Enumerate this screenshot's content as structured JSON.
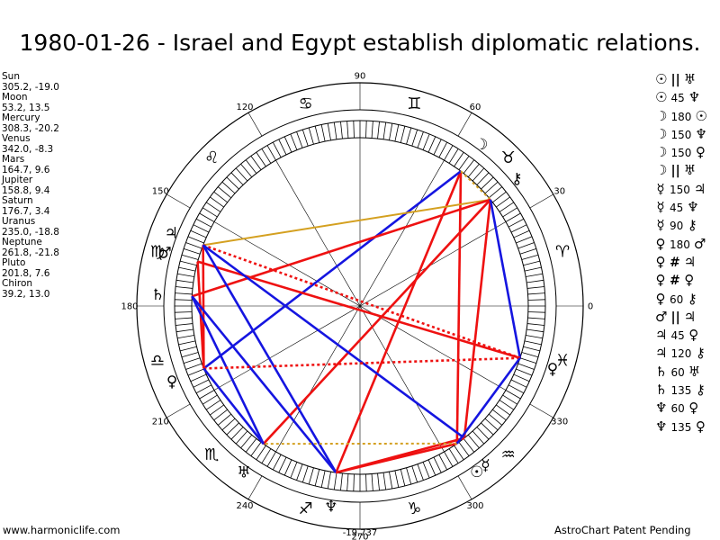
{
  "title": "1980-01-26 - Israel and Egypt establish diplomatic relations.",
  "planets": [
    {
      "name": "Sun",
      "coords": "305.2, -19.0",
      "glyph": "☉",
      "icon": "sun-icon",
      "lon": 305.2
    },
    {
      "name": "Moon",
      "coords": "53.2, 13.5",
      "glyph": "☽",
      "icon": "moon-icon",
      "lon": 53.2
    },
    {
      "name": "Mercury",
      "coords": "308.3, -20.2",
      "glyph": "☿",
      "icon": "mercury-icon",
      "lon": 308.3
    },
    {
      "name": "Venus",
      "coords": "342.0, -8.3",
      "glyph": "♀",
      "icon": "venus-icon",
      "lon": 342.0
    },
    {
      "name": "Mars",
      "coords": "164.7, 9.6",
      "glyph": "♂",
      "icon": "mars-icon",
      "lon": 164.7
    },
    {
      "name": "Jupiter",
      "coords": "158.8, 9.4",
      "glyph": "♃",
      "icon": "jupiter-icon",
      "lon": 158.8
    },
    {
      "name": "Saturn",
      "coords": "176.7, 3.4",
      "glyph": "♄",
      "icon": "saturn-icon",
      "lon": 176.7
    },
    {
      "name": "Uranus",
      "coords": "235.0, -18.8",
      "glyph": "♅",
      "icon": "uranus-icon",
      "lon": 235.0
    },
    {
      "name": "Neptune",
      "coords": "261.8, -21.8",
      "glyph": "♆",
      "icon": "neptune-icon",
      "lon": 261.8
    },
    {
      "name": "Pluto",
      "coords": "201.8, 7.6",
      "glyph": "♀",
      "icon": "pluto-icon",
      "lon": 201.8
    },
    {
      "name": "Chiron",
      "coords": "39.2, 13.0",
      "glyph": "⚷",
      "icon": "chiron-icon",
      "lon": 39.2
    }
  ],
  "aspects": [
    {
      "p1": "☉",
      "sym": "||",
      "p2": "♅"
    },
    {
      "p1": "☉",
      "sym": "45",
      "p2": "♆"
    },
    {
      "p1": "☽",
      "sym": "180",
      "p2": "☉"
    },
    {
      "p1": "☽",
      "sym": "150",
      "p2": "♆"
    },
    {
      "p1": "☽",
      "sym": "150",
      "p2": "♀"
    },
    {
      "p1": "☽",
      "sym": "||",
      "p2": "♅"
    },
    {
      "p1": "☿",
      "sym": "150",
      "p2": "♃"
    },
    {
      "p1": "☿",
      "sym": "45",
      "p2": "♆"
    },
    {
      "p1": "☿",
      "sym": "90",
      "p2": "⚷"
    },
    {
      "p1": "♀",
      "sym": "180",
      "p2": "♂"
    },
    {
      "p1": "♀",
      "sym": "#",
      "p2": "♃"
    },
    {
      "p1": "♀",
      "sym": "#",
      "p2": "♀"
    },
    {
      "p1": "♀",
      "sym": "60",
      "p2": "⚷"
    },
    {
      "p1": "♂",
      "sym": "||",
      "p2": "♃"
    },
    {
      "p1": "♃",
      "sym": "45",
      "p2": "♀"
    },
    {
      "p1": "♃",
      "sym": "120",
      "p2": "⚷"
    },
    {
      "p1": "♄",
      "sym": "60",
      "p2": "♅"
    },
    {
      "p1": "♄",
      "sym": "135",
      "p2": "⚷"
    },
    {
      "p1": "♆",
      "sym": "60",
      "p2": "♀"
    },
    {
      "p1": "♆",
      "sym": "135",
      "p2": "♀"
    }
  ],
  "degree_labels": [
    "0",
    "30",
    "60",
    "90",
    "120",
    "150",
    "180",
    "210",
    "240",
    "270",
    "300",
    "330"
  ],
  "zodiac": [
    {
      "glyph": "♈",
      "icon": "aries-icon"
    },
    {
      "glyph": "♉",
      "icon": "taurus-icon"
    },
    {
      "glyph": "♊",
      "icon": "gemini-icon"
    },
    {
      "glyph": "♋",
      "icon": "cancer-icon"
    },
    {
      "glyph": "♌",
      "icon": "leo-icon"
    },
    {
      "glyph": "♍",
      "icon": "virgo-icon"
    },
    {
      "glyph": "♎",
      "icon": "libra-icon"
    },
    {
      "glyph": "♏",
      "icon": "scorpio-icon"
    },
    {
      "glyph": "♐",
      "icon": "sagittarius-icon"
    },
    {
      "glyph": "♑",
      "icon": "capricorn-icon"
    },
    {
      "glyph": "♒",
      "icon": "aquarius-icon"
    },
    {
      "glyph": "♓",
      "icon": "pisces-icon"
    }
  ],
  "bottom_value": "-19,737",
  "lines": [
    {
      "a": "Moon",
      "b": "Sun",
      "color": "red",
      "style": "solid"
    },
    {
      "a": "Moon",
      "b": "Neptune",
      "color": "red",
      "style": "solid"
    },
    {
      "a": "Moon",
      "b": "Pluto",
      "color": "blue",
      "style": "solid"
    },
    {
      "a": "Moon",
      "b": "Chiron",
      "color": "gold",
      "style": "dotted"
    },
    {
      "a": "Chiron",
      "b": "Jupiter",
      "color": "gold",
      "style": "solid"
    },
    {
      "a": "Chiron",
      "b": "Saturn",
      "color": "red",
      "style": "solid"
    },
    {
      "a": "Chiron",
      "b": "Uranus",
      "color": "red",
      "style": "solid"
    },
    {
      "a": "Chiron",
      "b": "Mercury",
      "color": "red",
      "style": "solid"
    },
    {
      "a": "Chiron",
      "b": "Venus",
      "color": "blue",
      "style": "solid"
    },
    {
      "a": "Mars",
      "b": "Venus",
      "color": "red",
      "style": "solid"
    },
    {
      "a": "Jupiter",
      "b": "Venus",
      "color": "red",
      "style": "dotted"
    },
    {
      "a": "Jupiter",
      "b": "Pluto",
      "color": "red",
      "style": "solid"
    },
    {
      "a": "Jupiter",
      "b": "Mercury",
      "color": "blue",
      "style": "solid"
    },
    {
      "a": "Jupiter",
      "b": "Neptune",
      "color": "blue",
      "style": "solid"
    },
    {
      "a": "Mars",
      "b": "Pluto",
      "color": "red",
      "style": "solid"
    },
    {
      "a": "Saturn",
      "b": "Uranus",
      "color": "blue",
      "style": "solid"
    },
    {
      "a": "Saturn",
      "b": "Neptune",
      "color": "blue",
      "style": "solid"
    },
    {
      "a": "Pluto",
      "b": "Venus",
      "color": "red",
      "style": "dotted"
    },
    {
      "a": "Pluto",
      "b": "Uranus",
      "color": "blue",
      "style": "solid"
    },
    {
      "a": "Sun",
      "b": "Neptune",
      "color": "red",
      "style": "solid"
    },
    {
      "a": "Mercury",
      "b": "Neptune",
      "color": "red",
      "style": "solid"
    },
    {
      "a": "Sun",
      "b": "Uranus",
      "color": "gold",
      "style": "dotted"
    },
    {
      "a": "Sun",
      "b": "Venus",
      "color": "blue",
      "style": "solid"
    }
  ],
  "colors": {
    "red": "#ee1111",
    "blue": "#1515e0",
    "gold": "#d4a020"
  },
  "footer": {
    "left": "www.harmoniclife.com",
    "right": "AstroChart Patent Pending"
  }
}
